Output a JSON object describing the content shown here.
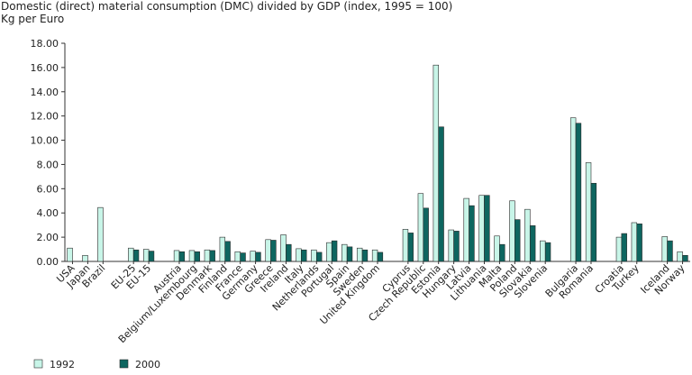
{
  "chart_data": {
    "type": "bar",
    "title": "Domestic (direct) material consumption (DMC) divided by GDP (index, 1995 = 100)",
    "subtitle": "Kg per Euro",
    "xlabel": "",
    "ylabel": "",
    "ylim": [
      0,
      18
    ],
    "yticks": [
      "0.00",
      "2.00",
      "4.00",
      "6.00",
      "8.00",
      "10.00",
      "12.00",
      "14.00",
      "16.00",
      "18.00"
    ],
    "grid": false,
    "legend_position": "bottom",
    "colors": {
      "1992": "#c8f5e8",
      "2000": "#0e6660",
      "edge": "#2a2a2a"
    },
    "categories": [
      "USA",
      "Japan",
      "Brazil",
      "",
      "EU-25",
      "EU-15",
      "",
      "Austria",
      "Belgium/Luxembourg",
      "Denmark",
      "Finland",
      "France",
      "Germany",
      "Greece",
      "Ireland",
      "Italy",
      "Netherlands",
      "Portugal",
      "Spain",
      "Sweden",
      "United Kingdom",
      "",
      "Cyprus",
      "Czech Republic",
      "Estonia",
      "Hungary",
      "Latvia",
      "Lithuania",
      "Malta",
      "Poland",
      "Slovakia",
      "Slovenia",
      "",
      "Bulgaria",
      "Romania",
      "",
      "Croatia",
      "Turkey",
      "",
      "Iceland",
      "Norway"
    ],
    "series": [
      {
        "name": "1992",
        "values": [
          1.1,
          0.5,
          4.45,
          null,
          1.1,
          1.0,
          null,
          0.9,
          0.9,
          0.95,
          2.0,
          0.8,
          0.85,
          1.8,
          2.2,
          1.05,
          0.95,
          1.55,
          1.4,
          1.1,
          0.95,
          null,
          2.65,
          5.6,
          16.2,
          2.6,
          5.2,
          5.45,
          2.1,
          5.0,
          4.3,
          1.7,
          null,
          11.85,
          8.15,
          null,
          2.0,
          3.2,
          null,
          2.05,
          0.8
        ]
      },
      {
        "name": "2000",
        "values": [
          null,
          null,
          null,
          null,
          0.95,
          0.85,
          null,
          0.8,
          0.8,
          0.9,
          1.65,
          0.7,
          0.75,
          1.75,
          1.4,
          0.95,
          0.75,
          1.7,
          1.2,
          0.95,
          0.75,
          null,
          2.35,
          4.4,
          11.1,
          2.5,
          4.6,
          5.45,
          1.4,
          3.45,
          2.95,
          1.55,
          null,
          11.4,
          6.45,
          null,
          2.3,
          3.1,
          null,
          1.7,
          0.5
        ]
      }
    ]
  }
}
